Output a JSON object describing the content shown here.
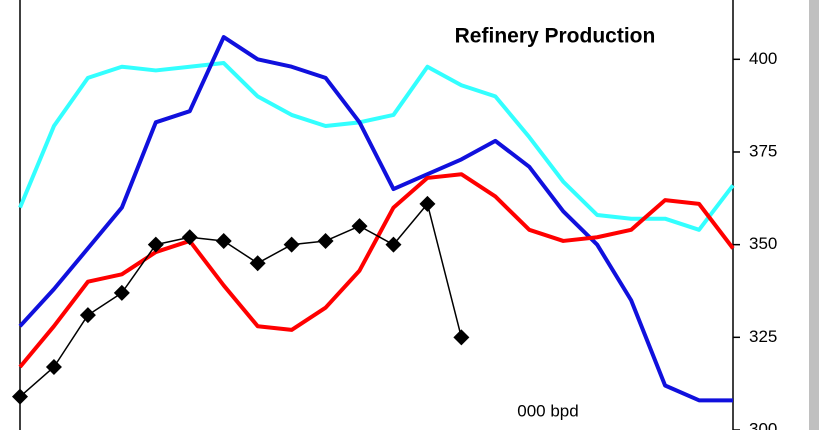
{
  "chart_data": {
    "type": "line",
    "title": "Refinery Production",
    "annotation": "000 bpd",
    "y_axis_position": "right",
    "categories": [
      null,
      null,
      null,
      null,
      null,
      null,
      null,
      null,
      null,
      null,
      null,
      null,
      null,
      null,
      null,
      null,
      null,
      null,
      null,
      null,
      null,
      null
    ],
    "ylim": [
      300,
      416
    ],
    "yticks": [
      300,
      325,
      350,
      375,
      400
    ],
    "grid": false,
    "series": [
      {
        "name": null,
        "color": "#33ffff",
        "marker": null,
        "values": [
          360,
          382,
          395,
          398,
          397,
          398,
          399,
          390,
          385,
          382,
          383,
          385,
          398,
          393,
          390,
          379,
          367,
          358,
          357,
          357,
          354,
          366
        ]
      },
      {
        "name": null,
        "color": "#1010dd",
        "marker": null,
        "values": [
          328,
          338,
          349,
          360,
          383,
          386,
          406,
          400,
          398,
          395,
          383,
          365,
          369,
          373,
          378,
          371,
          359,
          350,
          335,
          312,
          308,
          308
        ]
      },
      {
        "name": null,
        "color": "#ff0000",
        "marker": null,
        "values": [
          317,
          328,
          340,
          342,
          348,
          351,
          339,
          328,
          327,
          333,
          343,
          360,
          368,
          369,
          363,
          354,
          351,
          352,
          354,
          362,
          361,
          349
        ]
      },
      {
        "name": null,
        "color": "#000000",
        "marker": "diamond",
        "values": [
          309,
          317,
          331,
          337,
          350,
          352,
          351,
          345,
          350,
          351,
          355,
          350,
          361,
          325,
          null,
          null,
          null,
          null,
          null,
          null,
          null,
          null
        ]
      }
    ]
  }
}
